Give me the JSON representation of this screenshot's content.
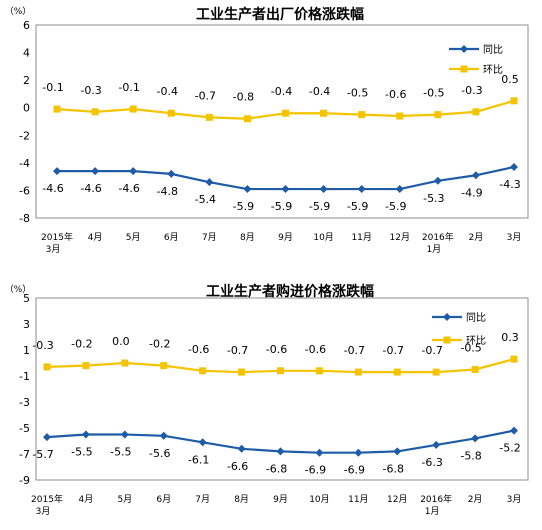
{
  "colors": {
    "yoy": "#1F5CA8",
    "mom": "#F5C400",
    "axis": "#8c8c8c",
    "grid": "#d9d9d9",
    "text": "#000000"
  },
  "chart_data": [
    {
      "type": "line",
      "title": "工业生产者出厂价格涨跌幅",
      "unit": "（%）",
      "categories": [
        "2015年|3月",
        "4月",
        "5月",
        "6月",
        "7月",
        "8月",
        "9月",
        "10月",
        "11月",
        "12月",
        "2016年|1月",
        "2月",
        "3月"
      ],
      "yticks": [
        "6",
        "4",
        "2",
        "0",
        "-2",
        "-4",
        "-6",
        "-8"
      ],
      "ylim": [
        -8,
        6
      ],
      "legend_position": "top-right",
      "series": [
        {
          "name": "同比",
          "color": "#1F5CA8",
          "marker": "diamond",
          "values": [
            -4.6,
            -4.6,
            -4.6,
            -4.8,
            -5.4,
            -5.9,
            -5.9,
            -5.9,
            -5.9,
            -5.9,
            -5.3,
            -4.9,
            -4.3
          ]
        },
        {
          "name": "环比",
          "color": "#F5C400",
          "marker": "square",
          "values": [
            -0.1,
            -0.3,
            -0.1,
            -0.4,
            -0.7,
            -0.8,
            -0.4,
            -0.4,
            -0.5,
            -0.6,
            -0.5,
            -0.3,
            0.5
          ]
        }
      ]
    },
    {
      "type": "line",
      "title": "工业生产者购进价格涨跌幅",
      "unit": "（%）",
      "categories": [
        "2015年|3月",
        "4月",
        "5月",
        "6月",
        "7月",
        "8月",
        "9月",
        "10月",
        "11月",
        "12月",
        "2016年|1月",
        "2月",
        "3月"
      ],
      "yticks": [
        "5",
        "3",
        "1",
        "-1",
        "-3",
        "-5",
        "-7",
        "-9"
      ],
      "ylim": [
        -9,
        5
      ],
      "legend_position": "top-right",
      "series": [
        {
          "name": "同比",
          "color": "#1F5CA8",
          "marker": "diamond",
          "values": [
            -5.7,
            -5.5,
            -5.5,
            -5.6,
            -6.1,
            -6.6,
            -6.8,
            -6.9,
            -6.9,
            -6.8,
            -6.3,
            -5.8,
            -5.2
          ]
        },
        {
          "name": "环比",
          "color": "#F5C400",
          "marker": "square",
          "values": [
            -0.3,
            -0.2,
            0.0,
            -0.2,
            -0.6,
            -0.7,
            -0.6,
            -0.6,
            -0.7,
            -0.7,
            -0.7,
            -0.5,
            0.3
          ]
        }
      ]
    }
  ]
}
